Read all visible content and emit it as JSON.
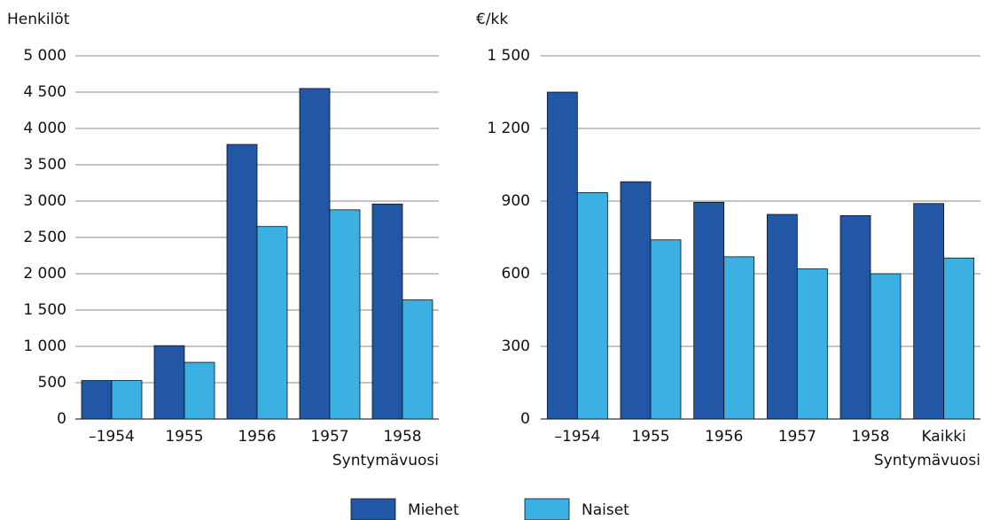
{
  "chart_data": [
    {
      "type": "bar",
      "y_label": "Henkilöt",
      "x_label": "Syntymävuosi",
      "categories": [
        "–1954",
        "1955",
        "1956",
        "1957",
        "1958"
      ],
      "series": [
        {
          "name": "Miehet",
          "color": "#2157a4",
          "values": [
            530,
            1010,
            3780,
            4550,
            2960
          ]
        },
        {
          "name": "Naiset",
          "color": "#3bb0e3",
          "values": [
            530,
            780,
            2650,
            2880,
            1640
          ]
        }
      ],
      "ylim": [
        0,
        5000
      ],
      "yticks": [
        0,
        500,
        {
          "value": 1000,
          "label": "1 000"
        },
        {
          "value": 1500,
          "label": "1 500"
        },
        {
          "value": 2000,
          "label": "2 000"
        },
        {
          "value": 2500,
          "label": "2 500"
        },
        {
          "value": 3000,
          "label": "3 000"
        },
        {
          "value": 3500,
          "label": "3 500"
        },
        {
          "value": 4000,
          "label": "4 000"
        },
        {
          "value": 4500,
          "label": "4 500"
        },
        {
          "value": 5000,
          "label": "5 000"
        }
      ],
      "grid": true
    },
    {
      "type": "bar",
      "y_label": "€/kk",
      "x_label": "Syntymävuosi",
      "categories": [
        "–1954",
        "1955",
        "1956",
        "1957",
        "1958",
        "Kaikki"
      ],
      "series": [
        {
          "color": "#2157a4",
          "values": [
            1350,
            980,
            895,
            845,
            840,
            890
          ]
        },
        {
          "color": "#3bb0e3",
          "values": [
            935,
            740,
            670,
            620,
            600,
            665
          ]
        }
      ],
      "ylim": [
        0,
        1500
      ],
      "yticks": [
        0,
        300,
        600,
        900,
        {
          "value": 1200,
          "label": "1 200"
        },
        {
          "value": 1500,
          "label": "1 500"
        }
      ],
      "grid": true
    }
  ]
}
